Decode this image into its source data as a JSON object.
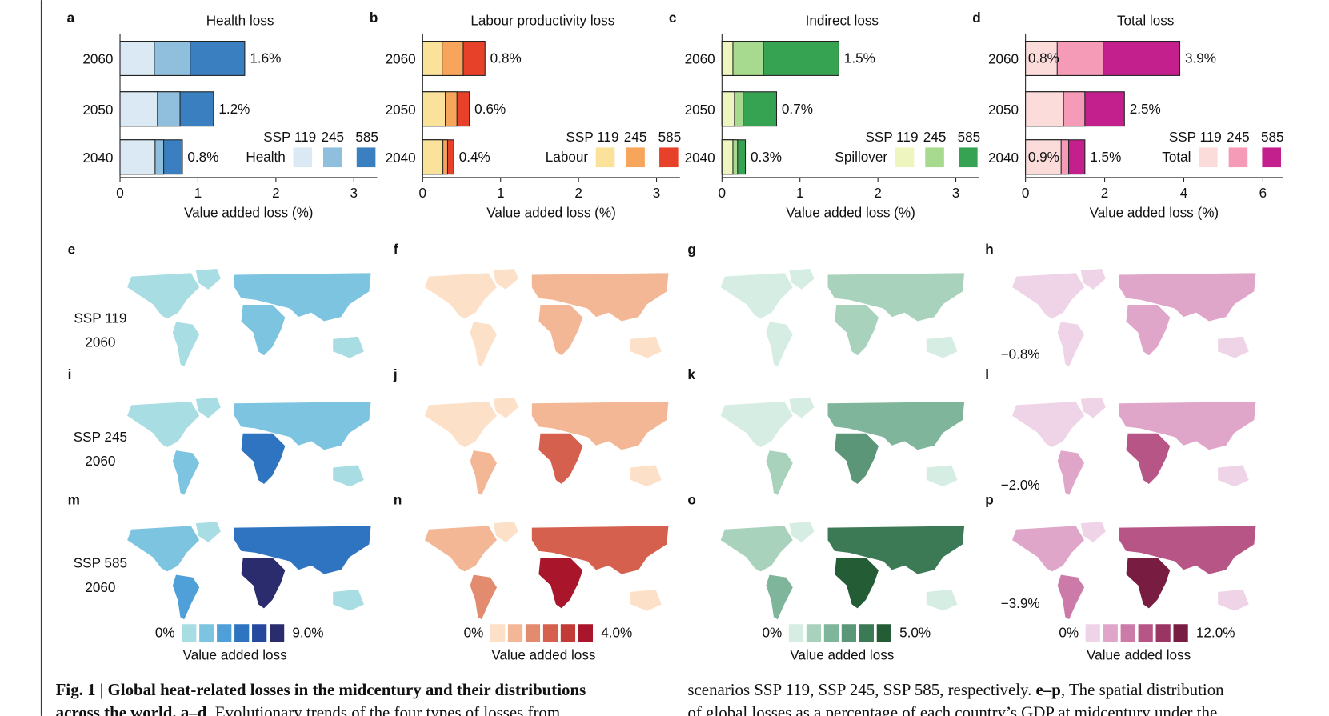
{
  "chart_data": [
    {
      "type": "bar",
      "panel": "a",
      "title": "Health loss",
      "categories": [
        "2060",
        "2050",
        "2040"
      ],
      "series": [
        {
          "name": "SSP 119",
          "color": "#dbe9f5",
          "values": [
            0.44,
            0.48,
            0.45
          ]
        },
        {
          "name": "245",
          "color": "#8fbfdc",
          "values": [
            0.9,
            0.77,
            0.56
          ]
        },
        {
          "name": "585",
          "color": "#3a7fbf",
          "values": [
            1.6,
            1.2,
            0.8
          ],
          "value_labels": [
            "1.6%",
            "1.2%",
            "0.8%"
          ]
        }
      ],
      "legend_label": "Health",
      "xlabel": "Value added loss (%)",
      "xlim": [
        0,
        3.3
      ],
      "xticks": [
        0,
        1,
        2,
        3
      ]
    },
    {
      "type": "bar",
      "panel": "b",
      "title": "Labour productivity loss",
      "categories": [
        "2060",
        "2050",
        "2040"
      ],
      "series": [
        {
          "name": "SSP 119",
          "color": "#fae29b",
          "values": [
            0.25,
            0.29,
            0.26
          ]
        },
        {
          "name": "245",
          "color": "#f6a55a",
          "values": [
            0.52,
            0.44,
            0.32
          ]
        },
        {
          "name": "585",
          "color": "#e8412a",
          "values": [
            0.8,
            0.6,
            0.4
          ],
          "value_labels": [
            "0.8%",
            "0.6%",
            "0.4%"
          ]
        }
      ],
      "legend_label": "Labour",
      "xlabel": "Value added loss (%)",
      "xlim": [
        0,
        3.3
      ],
      "xticks": [
        0,
        1,
        2,
        3
      ]
    },
    {
      "type": "bar",
      "panel": "c",
      "title": "Indirect loss",
      "categories": [
        "2060",
        "2050",
        "2040"
      ],
      "series": [
        {
          "name": "SSP 119",
          "color": "#eef5bf",
          "values": [
            0.14,
            0.16,
            0.14
          ]
        },
        {
          "name": "245",
          "color": "#a7da8f",
          "values": [
            0.53,
            0.27,
            0.2
          ]
        },
        {
          "name": "585",
          "color": "#36a352",
          "values": [
            1.5,
            0.7,
            0.3
          ],
          "value_labels": [
            "1.5%",
            "0.7%",
            "0.3%"
          ]
        }
      ],
      "legend_label": "Spillover",
      "xlabel": "Value added loss (%)",
      "xlim": [
        0,
        3.3
      ],
      "xticks": [
        0,
        1,
        2,
        3
      ]
    },
    {
      "type": "bar",
      "panel": "d",
      "title": "Total loss",
      "categories": [
        "2060",
        "2050",
        "2040"
      ],
      "series": [
        {
          "name": "SSP 119",
          "color": "#fbdcdb",
          "values": [
            0.8,
            0.96,
            0.9
          ],
          "value_labels": [
            "0.8%",
            null,
            "0.9%"
          ]
        },
        {
          "name": "245",
          "color": "#f59bb7",
          "values": [
            1.96,
            1.5,
            1.09
          ]
        },
        {
          "name": "585",
          "color": "#c3208e",
          "values": [
            3.9,
            2.5,
            1.5
          ],
          "value_labels": [
            "3.9%",
            "2.5%",
            "1.5%"
          ]
        }
      ],
      "legend_label": "Total",
      "xlabel": "Value added loss (%)",
      "xlim": [
        0,
        6.5
      ],
      "xticks": [
        0,
        2,
        4,
        6
      ]
    }
  ],
  "maps": {
    "panels": [
      [
        "e",
        "f",
        "g",
        "h"
      ],
      [
        "i",
        "j",
        "k",
        "l"
      ],
      [
        "m",
        "n",
        "o",
        "p"
      ]
    ],
    "rows": [
      {
        "scenario": "SSP 119",
        "year": "2060"
      },
      {
        "scenario": "SSP 245",
        "year": "2060"
      },
      {
        "scenario": "SSP 585",
        "year": "2060"
      }
    ],
    "min_labels": [
      "−0.8%",
      "−2.0%",
      "−3.9%"
    ],
    "colorbars": [
      {
        "min_label": "0%",
        "max_label": "9.0%",
        "title": "Value added loss",
        "colors": [
          "#a8dde3",
          "#7cc4e0",
          "#4f9fd8",
          "#2f74c0",
          "#26489e",
          "#2b2c6e"
        ]
      },
      {
        "min_label": "0%",
        "max_label": "4.0%",
        "title": "Value added loss",
        "colors": [
          "#fde0c8",
          "#f3b796",
          "#e38b6e",
          "#d5604e",
          "#c23b37",
          "#a9152a"
        ]
      },
      {
        "min_label": "0%",
        "max_label": "5.0%",
        "title": "Value added loss",
        "colors": [
          "#d6ede3",
          "#a9d2bd",
          "#7fb59a",
          "#5a9677",
          "#3c7955",
          "#245c36"
        ]
      },
      {
        "min_label": "0%",
        "max_label": "12.0%",
        "title": "Value added loss",
        "colors": [
          "#efd4e8",
          "#e0a6c9",
          "#cc7aa7",
          "#b75586",
          "#9a3463",
          "#781c42"
        ]
      }
    ]
  },
  "caption": {
    "left": [
      [
        {
          "bold": true,
          "text": "Fig. 1 | Global heat-related losses in the midcentury and their distributions"
        }
      ],
      [
        {
          "bold": true,
          "text": "across the world."
        },
        {
          "bold": true,
          "text": " a–d"
        },
        {
          "bold": false,
          "text": ", Evolutionary trends of the four types of losses from"
        }
      ]
    ],
    "right": [
      [
        {
          "bold": false,
          "text": "scenarios SSP 119, SSP 245, SSP 585, respectively."
        },
        {
          "bold": true,
          "text": " e–p"
        },
        {
          "bold": false,
          "text": ", The spatial distribution"
        }
      ],
      [
        {
          "bold": false,
          "text": "of global losses as a percentage of each country’s GDP at midcentury under the"
        }
      ]
    ]
  }
}
